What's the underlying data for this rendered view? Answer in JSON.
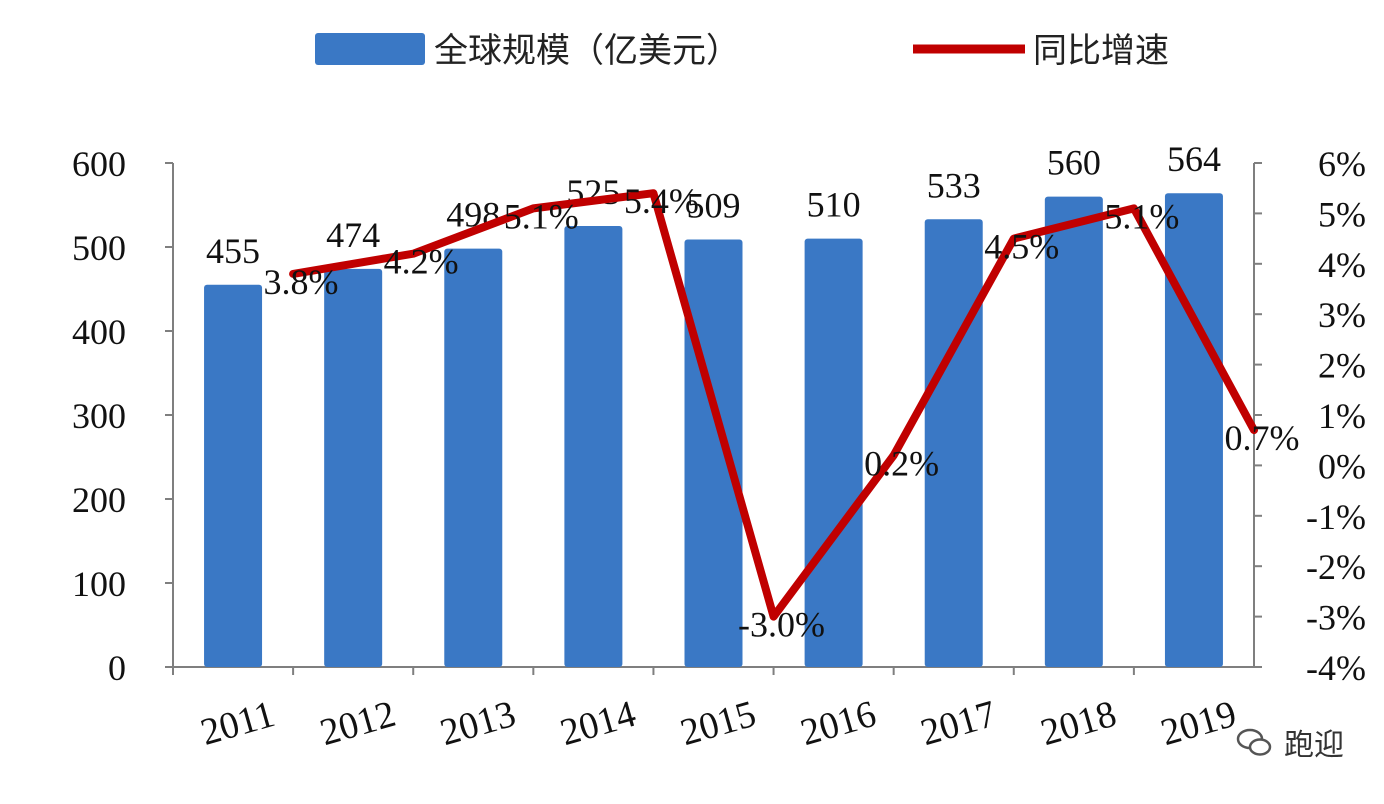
{
  "chart_data": {
    "type": "bar",
    "categories": [
      "2011",
      "2012",
      "2013",
      "2014",
      "2015",
      "2016",
      "2017",
      "2018",
      "2019"
    ],
    "series": [
      {
        "name": "全球规模（亿美元）",
        "type": "bar",
        "axis": "left",
        "values": [
          455,
          474,
          498,
          525,
          509,
          510,
          533,
          560,
          564
        ],
        "labels": [
          "455",
          "474",
          "498",
          "525",
          "509",
          "510",
          "533",
          "560",
          "564"
        ]
      },
      {
        "name": "同比增速",
        "type": "line",
        "axis": "right",
        "values": [
          3.8,
          4.2,
          5.1,
          5.4,
          -3.0,
          0.2,
          4.5,
          5.1,
          0.7
        ],
        "labels": [
          "3.8%",
          "4.2%",
          "5.1%",
          "5.4%",
          "-3.0%",
          "0.2%",
          "4.5%",
          "5.1%",
          "0.7%"
        ]
      }
    ],
    "yleft": {
      "range": [
        0,
        600
      ],
      "ticks": [
        "0",
        "100",
        "200",
        "300",
        "400",
        "500",
        "600"
      ]
    },
    "yright": {
      "range": [
        -4,
        6
      ],
      "ticks": [
        "-4%",
        "-3%",
        "-2%",
        "-1%",
        "0%",
        "1%",
        "2%",
        "3%",
        "4%",
        "5%",
        "6%"
      ]
    },
    "legend_position": "top-center",
    "grid": false,
    "colors": {
      "bar": "#3A78C5",
      "line": "#C00000"
    }
  },
  "watermark": {
    "text": "跑迎"
  }
}
